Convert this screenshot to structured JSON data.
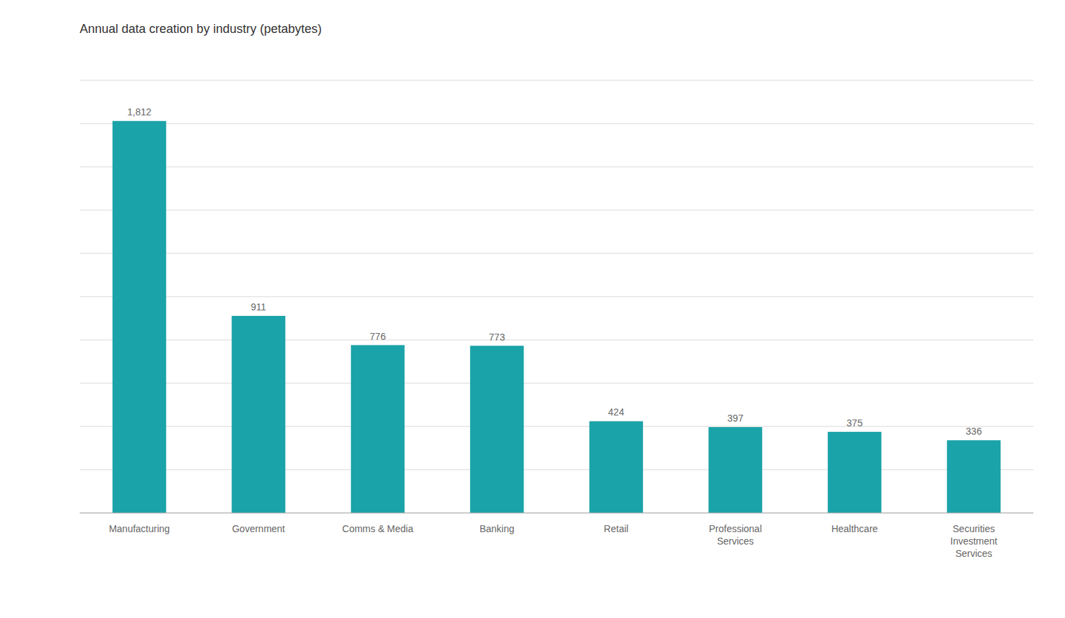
{
  "chart_data": {
    "type": "bar",
    "title": "Annual data creation by industry (petabytes)",
    "categories": [
      "Manufacturing",
      "Government",
      "Comms & Media",
      "Banking",
      "Retail",
      "Professional\nServices",
      "Healthcare",
      "Securities\nInvestment\nServices"
    ],
    "values": [
      1812,
      911,
      776,
      773,
      424,
      397,
      375,
      336
    ],
    "value_labels": [
      "1,812",
      "911",
      "776",
      "773",
      "424",
      "397",
      "375",
      "336"
    ],
    "color": "#1aa3a8",
    "ylim": [
      0,
      2000
    ],
    "yticks": [
      0,
      200,
      400,
      600,
      800,
      1000,
      1200,
      1400,
      1600,
      1800,
      2000
    ],
    "grid": true,
    "data_labels": true,
    "tick_labels": "x"
  }
}
